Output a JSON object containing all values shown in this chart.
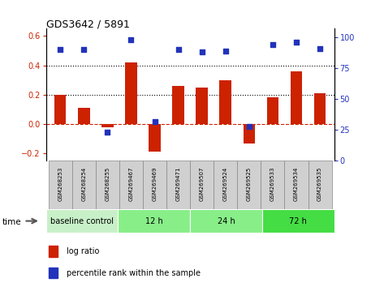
{
  "title": "GDS3642 / 5891",
  "samples": [
    "GSM268253",
    "GSM268254",
    "GSM268255",
    "GSM269467",
    "GSM269469",
    "GSM269471",
    "GSM269507",
    "GSM269524",
    "GSM269525",
    "GSM269533",
    "GSM269534",
    "GSM269535"
  ],
  "log_ratio": [
    0.2,
    0.11,
    -0.02,
    0.42,
    -0.19,
    0.26,
    0.25,
    0.3,
    -0.13,
    0.18,
    0.36,
    0.21
  ],
  "percentile_rank": [
    90,
    90,
    23,
    98,
    32,
    90,
    88,
    89,
    28,
    94,
    96,
    91
  ],
  "ylim_left": [
    -0.25,
    0.65
  ],
  "ylim_right": [
    0,
    107
  ],
  "yticks_left": [
    -0.2,
    0.0,
    0.2,
    0.4,
    0.6
  ],
  "yticks_right": [
    0,
    25,
    50,
    75,
    100
  ],
  "bar_color": "#cc2200",
  "dot_color": "#2233bb",
  "dotted_line_y": [
    0.2,
    0.4
  ],
  "groups": [
    {
      "label": "baseline control",
      "start": 0,
      "end": 3,
      "color": "#c8f0c8"
    },
    {
      "label": "12 h",
      "start": 3,
      "end": 6,
      "color": "#88ee88"
    },
    {
      "label": "24 h",
      "start": 6,
      "end": 9,
      "color": "#88ee88"
    },
    {
      "label": "72 h",
      "start": 9,
      "end": 12,
      "color": "#44dd44"
    }
  ],
  "legend_bar_label": "log ratio",
  "legend_dot_label": "percentile rank within the sample",
  "time_label": "time",
  "sample_bg_color": "#d0d0d0",
  "plot_bg_color": "#ffffff",
  "dashed_zero_color": "#cc2200",
  "fig_bg_color": "#ffffff"
}
